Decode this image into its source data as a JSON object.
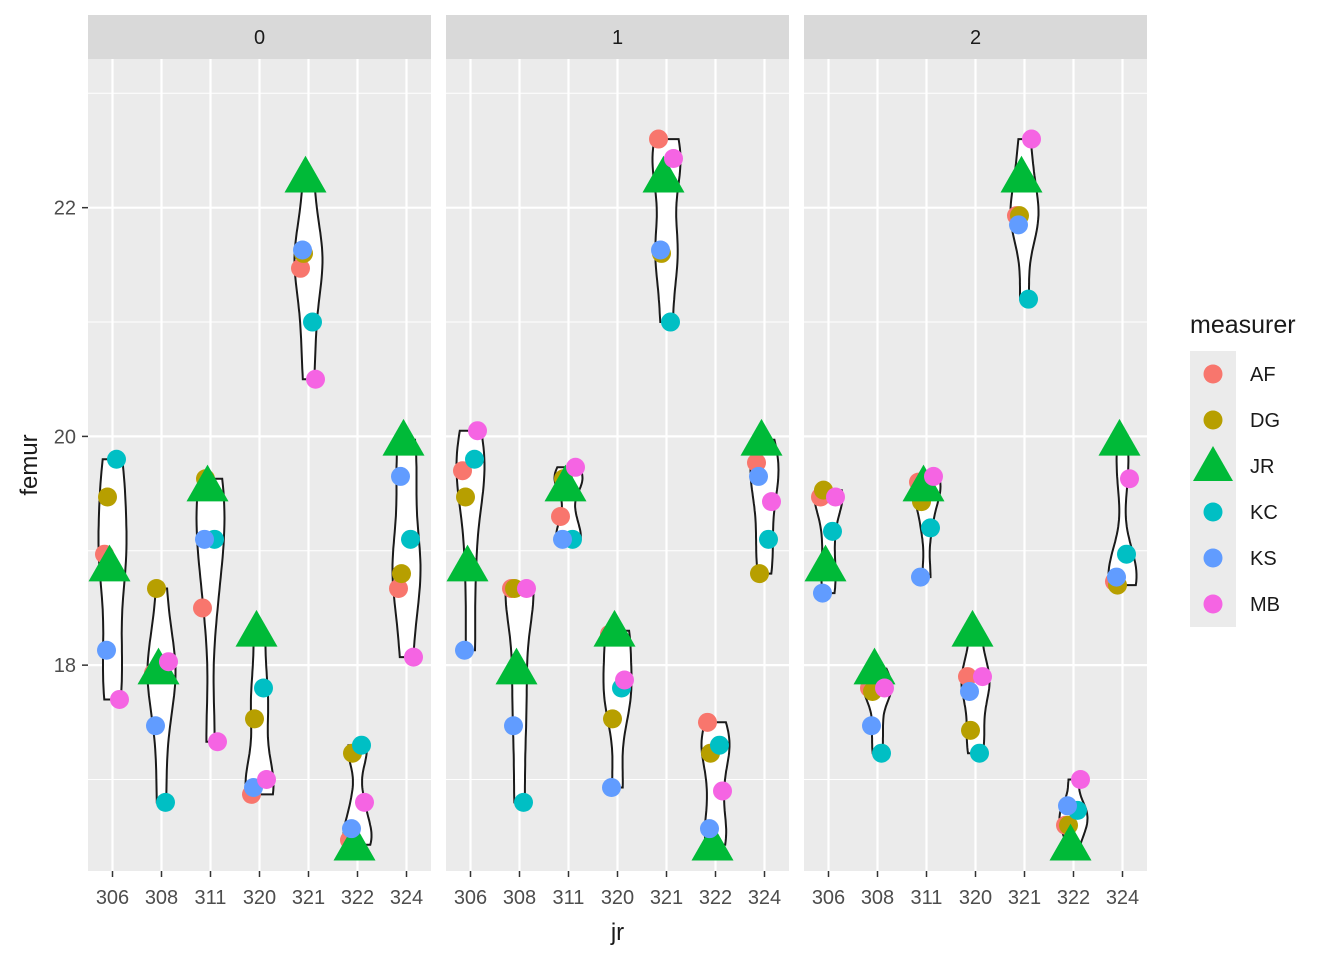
{
  "chart_data": {
    "type": "scatter",
    "overlay": "violin",
    "facet_variable": "",
    "facets": [
      "0",
      "1",
      "2"
    ],
    "categories": [
      "306",
      "308",
      "311",
      "320",
      "321",
      "322",
      "324"
    ],
    "xlabel": "jr",
    "ylabel": "femur",
    "ylim": [
      16.2,
      23.3
    ],
    "y_ticks": [
      18,
      20,
      22
    ],
    "y_tick_labels": [
      "18",
      "20",
      "22"
    ],
    "grid": true,
    "legend": {
      "title": "measurer",
      "placement": "right",
      "entries": [
        {
          "name": "AF",
          "color": "#F8766D",
          "shape": "circle"
        },
        {
          "name": "DG",
          "color": "#B79F00",
          "shape": "circle"
        },
        {
          "name": "JR",
          "color": "#00BA38",
          "shape": "triangle"
        },
        {
          "name": "KC",
          "color": "#00BFC4",
          "shape": "circle"
        },
        {
          "name": "KS",
          "color": "#619CFF",
          "shape": "circle"
        },
        {
          "name": "MB",
          "color": "#F564E3",
          "shape": "circle"
        }
      ]
    },
    "panels": [
      {
        "facet": "0",
        "groups": [
          {
            "jr": "306",
            "violin_range": [
              17.7,
              19.8
            ],
            "points": {
              "AF": 18.97,
              "DG": 19.47,
              "JR": 18.87,
              "KC": 19.8,
              "KS": 18.13,
              "MB": 17.7
            }
          },
          {
            "jr": "308",
            "violin_range": [
              16.8,
              18.67
            ],
            "points": {
              "AF": 17.93,
              "DG": 18.67,
              "JR": 17.97,
              "KC": 16.8,
              "KS": 17.47,
              "MB": 18.03
            }
          },
          {
            "jr": "311",
            "violin_range": [
              17.33,
              19.63
            ],
            "points": {
              "AF": 18.5,
              "DG": 19.63,
              "JR": 19.57,
              "KC": 19.1,
              "KS": 19.1,
              "MB": 17.33
            }
          },
          {
            "jr": "320",
            "violin_range": [
              16.87,
              18.3
            ],
            "points": {
              "AF": 16.87,
              "DG": 17.53,
              "JR": 18.3,
              "KC": 17.8,
              "KS": 16.93,
              "MB": 17.0
            }
          },
          {
            "jr": "321",
            "violin_range": [
              20.5,
              22.27
            ],
            "points": {
              "AF": 21.47,
              "DG": 21.6,
              "JR": 22.27,
              "KC": 21.0,
              "KS": 21.63,
              "MB": 20.5
            }
          },
          {
            "jr": "322",
            "violin_range": [
              16.43,
              17.3
            ],
            "points": {
              "AF": 16.47,
              "DG": 17.23,
              "JR": 16.43,
              "KC": 17.3,
              "KS": 16.57,
              "MB": 16.8
            }
          },
          {
            "jr": "324",
            "violin_range": [
              18.07,
              19.97
            ],
            "points": {
              "AF": 18.67,
              "DG": 18.8,
              "JR": 19.97,
              "KC": 19.1,
              "KS": 19.65,
              "MB": 18.07
            }
          }
        ]
      },
      {
        "facet": "1",
        "groups": [
          {
            "jr": "306",
            "violin_range": [
              18.13,
              20.05
            ],
            "points": {
              "AF": 19.7,
              "DG": 19.47,
              "JR": 18.87,
              "KC": 19.8,
              "KS": 18.13,
              "MB": 20.05
            }
          },
          {
            "jr": "308",
            "violin_range": [
              16.8,
              18.67
            ],
            "points": {
              "AF": 18.67,
              "DG": 18.67,
              "JR": 17.97,
              "KC": 16.8,
              "KS": 17.47,
              "MB": 18.67
            }
          },
          {
            "jr": "311",
            "violin_range": [
              19.1,
              19.73
            ],
            "points": {
              "AF": 19.3,
              "DG": 19.63,
              "JR": 19.57,
              "KC": 19.1,
              "KS": 19.1,
              "MB": 19.73
            }
          },
          {
            "jr": "320",
            "violin_range": [
              16.93,
              18.3
            ],
            "points": {
              "AF": 18.27,
              "DG": 17.53,
              "JR": 18.3,
              "KC": 17.8,
              "KS": 16.93,
              "MB": 17.87
            }
          },
          {
            "jr": "321",
            "violin_range": [
              21.0,
              22.6
            ],
            "points": {
              "AF": 22.6,
              "DG": 21.6,
              "JR": 22.27,
              "KC": 21.0,
              "KS": 21.63,
              "MB": 22.43
            }
          },
          {
            "jr": "322",
            "violin_range": [
              16.43,
              17.5
            ],
            "points": {
              "AF": 17.5,
              "DG": 17.23,
              "JR": 16.43,
              "KC": 17.3,
              "KS": 16.57,
              "MB": 16.9
            }
          },
          {
            "jr": "324",
            "violin_range": [
              18.8,
              19.97
            ],
            "points": {
              "AF": 19.77,
              "DG": 18.8,
              "JR": 19.97,
              "KC": 19.1,
              "KS": 19.65,
              "MB": 19.43
            }
          }
        ]
      },
      {
        "facet": "2",
        "groups": [
          {
            "jr": "306",
            "violin_range": [
              18.63,
              19.53
            ],
            "points": {
              "AF": 19.47,
              "DG": 19.53,
              "JR": 18.87,
              "KC": 19.17,
              "KS": 18.63,
              "MB": 19.47
            }
          },
          {
            "jr": "308",
            "violin_range": [
              17.23,
              17.97
            ],
            "points": {
              "AF": 17.8,
              "DG": 17.77,
              "JR": 17.97,
              "KC": 17.23,
              "KS": 17.47,
              "MB": 17.8
            }
          },
          {
            "jr": "311",
            "violin_range": [
              18.77,
              19.65
            ],
            "points": {
              "AF": 19.6,
              "DG": 19.43,
              "JR": 19.57,
              "KC": 19.2,
              "KS": 18.77,
              "MB": 19.65
            }
          },
          {
            "jr": "320",
            "violin_range": [
              17.23,
              18.3
            ],
            "points": {
              "AF": 17.9,
              "DG": 17.43,
              "JR": 18.3,
              "KC": 17.23,
              "KS": 17.77,
              "MB": 17.9
            }
          },
          {
            "jr": "321",
            "violin_range": [
              21.2,
              22.6
            ],
            "points": {
              "AF": 21.93,
              "DG": 21.93,
              "JR": 22.27,
              "KC": 21.2,
              "KS": 21.85,
              "MB": 22.6
            }
          },
          {
            "jr": "322",
            "violin_range": [
              16.43,
              17.0
            ],
            "points": {
              "AF": 16.6,
              "DG": 16.6,
              "JR": 16.43,
              "KC": 16.73,
              "KS": 16.77,
              "MB": 17.0
            }
          },
          {
            "jr": "324",
            "violin_range": [
              18.7,
              19.97
            ],
            "points": {
              "AF": 18.73,
              "DG": 18.7,
              "JR": 19.97,
              "KC": 18.97,
              "KS": 18.77,
              "MB": 19.63
            }
          }
        ]
      }
    ]
  }
}
